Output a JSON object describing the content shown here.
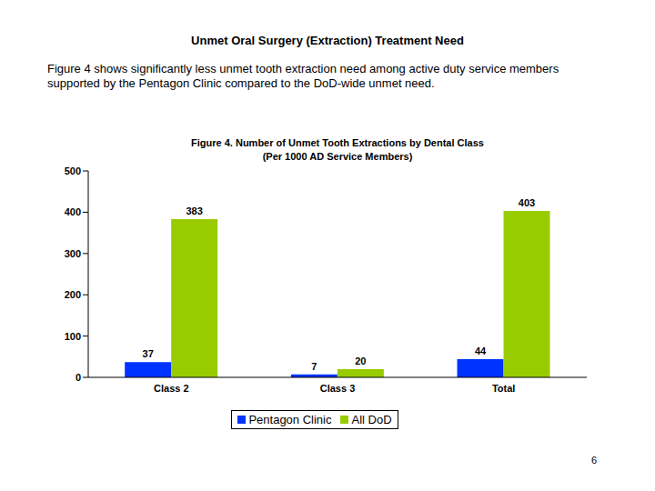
{
  "heading": "Unmet Oral Surgery (Extraction) Treatment Need",
  "text": "Figure 4 shows significantly less unmet tooth extraction need among active duty service members supported by the Pentagon Clinic compared to the DoD-wide unmet need.",
  "page": "6",
  "chart_data": {
    "type": "bar",
    "title": "Figure 4.  Number of Unmet Tooth Extractions by Dental Class",
    "subtitle": "(Per 1000 AD Service Members)",
    "categories": [
      "Class 2",
      "Class 3",
      "Total"
    ],
    "series": [
      {
        "name": "Pentagon Clinic",
        "color": "#0033ff",
        "values": [
          37,
          7,
          44
        ]
      },
      {
        "name": "All DoD",
        "color": "#99cc00",
        "values": [
          383,
          20,
          403
        ]
      }
    ],
    "ylim": [
      0,
      500
    ],
    "yticks": [
      0,
      100,
      200,
      300,
      400,
      500
    ],
    "grid": false,
    "data_labels": true,
    "legend": "bottom"
  }
}
